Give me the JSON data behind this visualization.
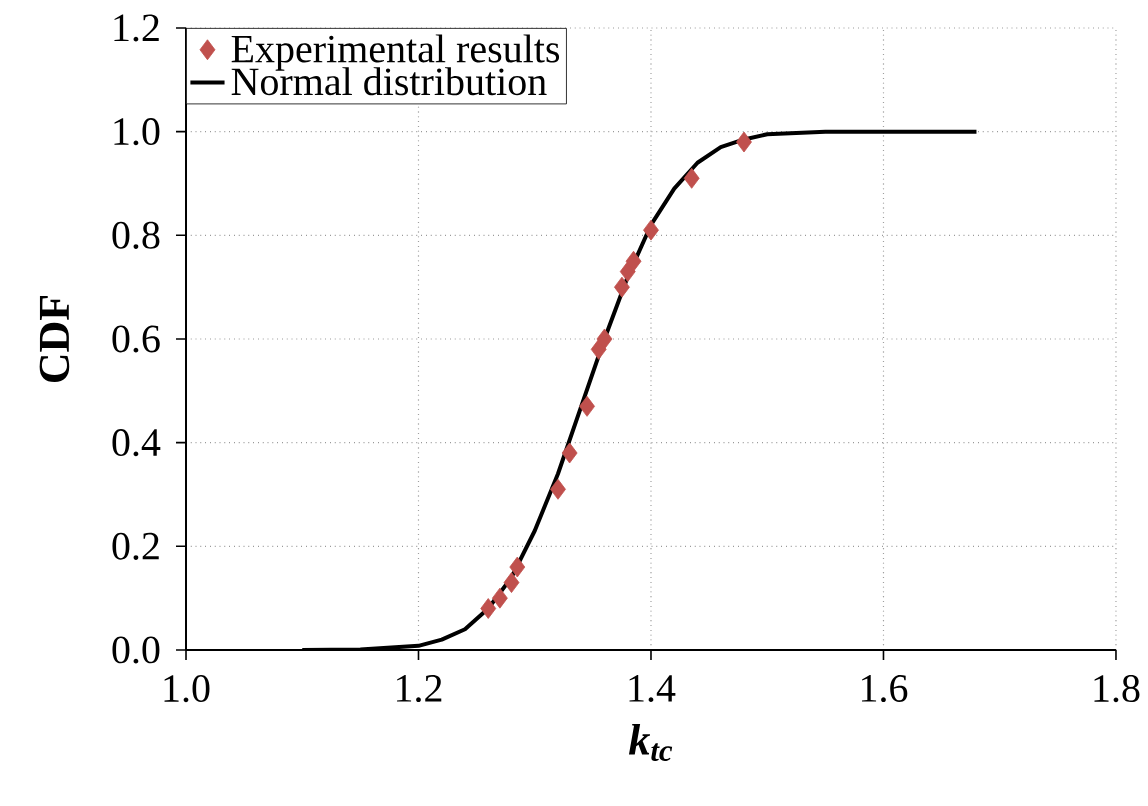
{
  "chart_data": {
    "type": "scatter",
    "xlabel": "*k*$_{tc}$",
    "ylabel": "**CDF**",
    "xlim": [
      1.0,
      1.8
    ],
    "xticks": [
      {
        "value": 1.0,
        "label": "1.0"
      },
      {
        "value": 1.2,
        "label": "1.2"
      },
      {
        "value": 1.4,
        "label": "1.4"
      },
      {
        "value": 1.6,
        "label": "1.6"
      },
      {
        "value": 1.8,
        "label": "1.8"
      }
    ],
    "ylim": [
      0.0,
      1.2
    ],
    "yticks": [
      {
        "value": 0.0,
        "label": "0.0"
      },
      {
        "value": 0.2,
        "label": "0.2"
      },
      {
        "value": 0.4,
        "label": "0.4"
      },
      {
        "value": 0.6,
        "label": "0.6"
      },
      {
        "value": 0.8,
        "label": "0.8"
      },
      {
        "value": 1.0,
        "label": "1.0"
      },
      {
        "value": 1.2,
        "label": "1.2"
      }
    ],
    "grid": true,
    "legend": "top left",
    "series": [
      {
        "name": "Experimental results",
        "marker": "diamond",
        "color": "#c0504d",
        "x": [
          1.26,
          1.27,
          1.28,
          1.285,
          1.32,
          1.33,
          1.345,
          1.355,
          1.36,
          1.375,
          1.38,
          1.385,
          1.4,
          1.435,
          1.48
        ],
        "values": [
          0.08,
          0.1,
          0.13,
          0.16,
          0.31,
          0.38,
          0.47,
          0.58,
          0.6,
          0.7,
          0.73,
          0.75,
          0.81,
          0.91,
          0.98
        ]
      },
      {
        "name": "Normal distribution",
        "type": "line",
        "marker": "none",
        "line_style": "solid",
        "color": "#000000",
        "x": [
          1.1,
          1.15,
          1.2,
          1.22,
          1.24,
          1.26,
          1.28,
          1.3,
          1.32,
          1.34,
          1.36,
          1.38,
          1.4,
          1.42,
          1.44,
          1.46,
          1.48,
          1.5,
          1.55,
          1.68
        ],
        "values": [
          0.0,
          0.001,
          0.008,
          0.02,
          0.04,
          0.08,
          0.14,
          0.23,
          0.34,
          0.47,
          0.6,
          0.72,
          0.82,
          0.89,
          0.94,
          0.97,
          0.985,
          0.995,
          1.0,
          1.0
        ]
      }
    ]
  }
}
